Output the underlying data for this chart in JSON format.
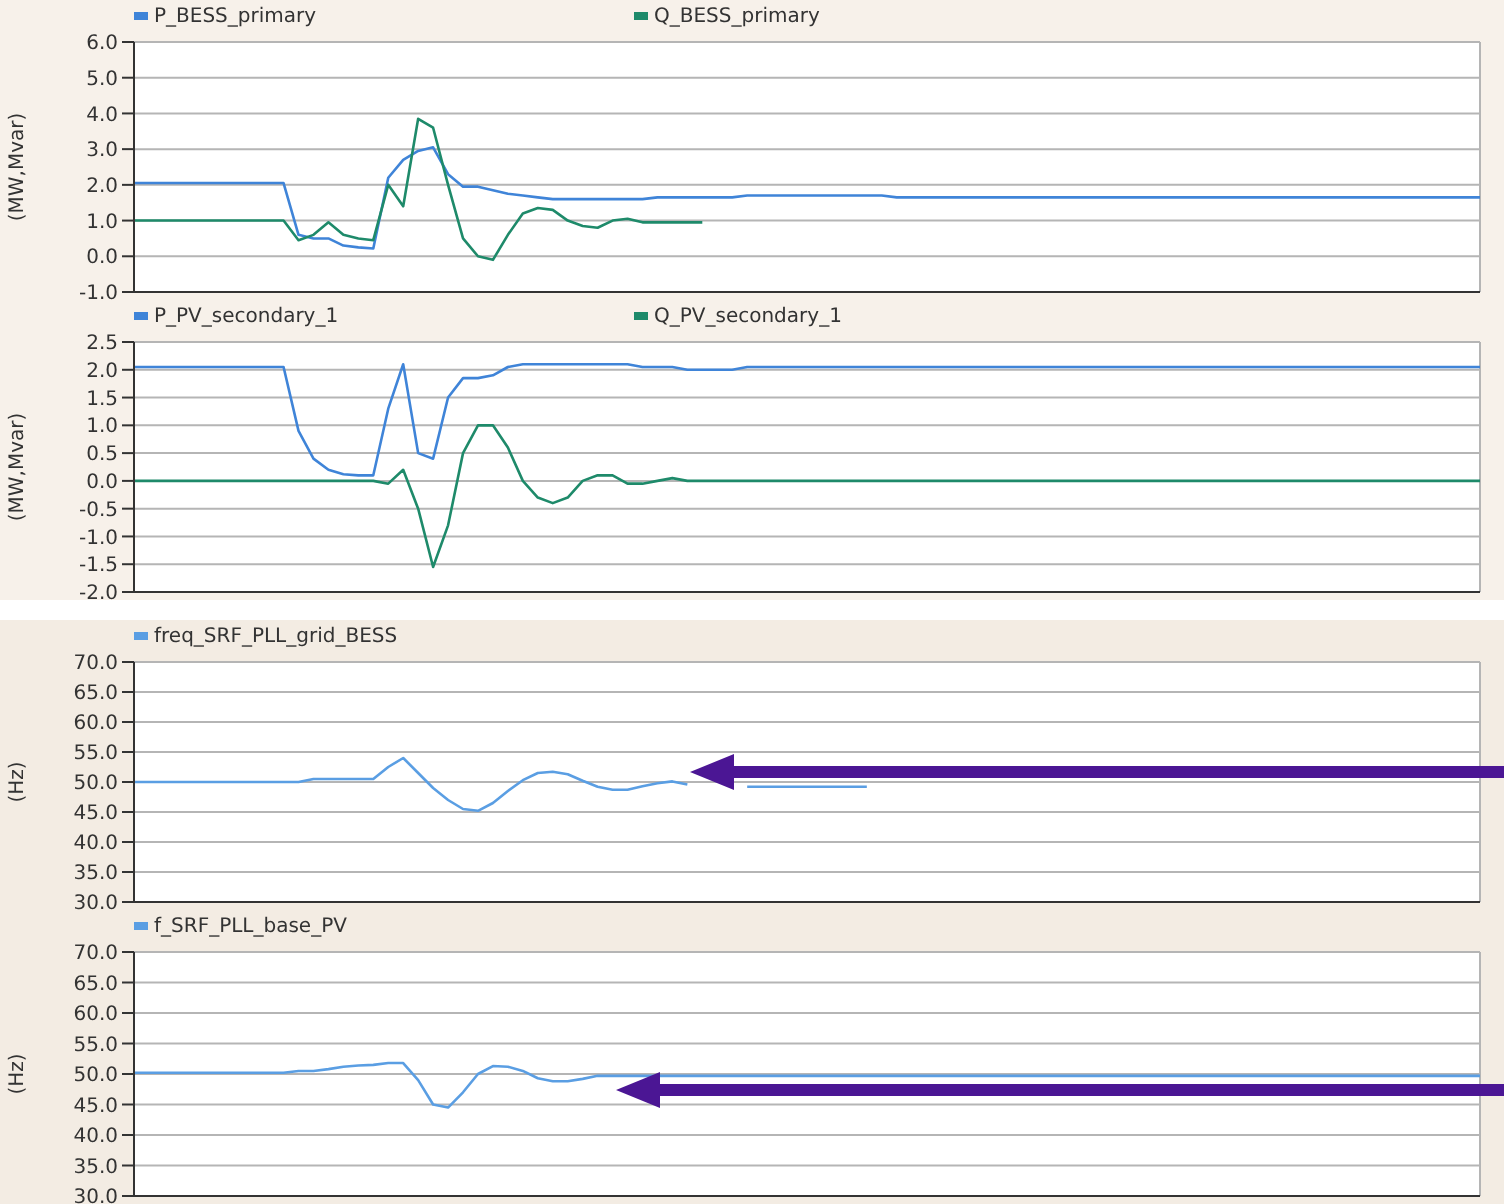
{
  "chart_data": [
    {
      "type": "line",
      "ylabel": "(MW,Mvar)",
      "legend": "top left",
      "grid": true,
      "tick_labels": "y",
      "ylim": [
        -1,
        6
      ],
      "yticks": [
        {
          "value": -1,
          "label": "-1.0"
        },
        {
          "value": 0,
          "label": "0.0"
        },
        {
          "value": 1,
          "label": "1.0"
        },
        {
          "value": 2,
          "label": "2.0"
        },
        {
          "value": 3,
          "label": "3.0"
        },
        {
          "value": 4,
          "label": "4.0"
        },
        {
          "value": 5,
          "label": "5.0"
        },
        {
          "value": 6,
          "label": "6.0"
        }
      ],
      "categories": [
        null,
        null,
        null,
        null,
        null,
        null,
        null,
        null,
        null,
        null,
        null,
        null,
        null,
        null,
        null,
        null,
        null,
        null,
        null,
        null,
        null,
        null,
        null,
        null,
        null,
        null,
        null,
        null,
        null,
        null,
        null,
        null,
        null,
        null,
        null,
        null,
        null,
        null,
        null,
        null,
        null,
        null,
        null,
        null,
        null,
        null,
        null,
        null,
        null,
        null,
        null,
        null,
        null,
        null,
        null,
        null,
        null,
        null,
        null,
        null,
        null,
        null,
        null,
        null,
        null,
        null,
        null,
        null,
        null,
        null,
        null,
        null,
        null,
        null,
        null,
        null,
        null,
        null,
        null,
        null,
        null,
        null,
        null,
        null,
        null,
        null,
        null,
        null,
        null,
        null,
        null
      ],
      "series": [
        {
          "name": "P_BESS_primary",
          "color": "#3f84d8",
          "values": [
            2.05,
            2.05,
            2.05,
            2.05,
            2.05,
            2.05,
            2.05,
            2.05,
            2.05,
            2.05,
            2.05,
            0.6,
            0.5,
            0.5,
            0.3,
            0.25,
            0.22,
            2.2,
            2.7,
            2.95,
            3.05,
            2.3,
            1.95,
            1.95,
            1.85,
            1.75,
            1.7,
            1.65,
            1.6,
            1.6,
            1.6,
            1.6,
            1.6,
            1.6,
            1.6,
            1.65,
            1.65,
            1.65,
            1.65,
            1.65,
            1.65,
            1.7,
            1.7,
            1.7,
            1.7,
            1.7,
            1.7,
            1.7,
            1.7,
            1.7,
            1.7,
            1.65,
            1.65,
            1.65,
            1.65,
            1.65,
            1.65,
            1.65,
            1.65,
            1.65,
            1.65,
            1.65,
            1.65,
            1.65,
            1.65,
            1.65,
            1.65,
            1.65,
            1.65,
            1.65,
            1.65,
            1.65,
            1.65,
            1.65,
            1.65,
            1.65,
            1.65,
            1.65,
            1.65,
            1.65,
            1.65,
            1.65,
            1.65,
            1.65,
            1.65,
            1.65,
            1.65,
            1.65,
            1.65,
            1.65,
            1.65
          ]
        },
        {
          "name": "Q_BESS_primary",
          "color": "#1e8a6a",
          "values": [
            1.0,
            1.0,
            1.0,
            1.0,
            1.0,
            1.0,
            1.0,
            1.0,
            1.0,
            1.0,
            1.0,
            0.45,
            0.6,
            0.95,
            0.6,
            0.5,
            0.45,
            2.0,
            1.4,
            3.85,
            3.6,
            2.0,
            0.5,
            0.0,
            -0.1,
            0.6,
            1.2,
            1.35,
            1.3,
            1.0,
            0.85,
            0.8,
            1.0,
            1.05,
            0.95,
            0.95,
            0.95,
            0.95,
            0.95,
            null,
            null,
            null,
            null,
            null,
            null,
            null,
            null,
            null,
            null,
            null,
            null,
            null,
            null,
            null,
            null,
            null,
            null,
            null,
            null,
            null,
            null,
            null,
            null,
            null,
            null,
            null,
            null,
            null,
            null,
            null,
            null,
            null,
            null,
            null,
            null,
            null,
            null,
            null,
            null,
            null,
            null,
            null,
            null,
            null,
            null,
            null,
            null,
            null,
            null,
            null,
            null
          ]
        }
      ]
    },
    {
      "type": "line",
      "ylabel": "(MW,Mvar)",
      "legend": "top left",
      "grid": true,
      "tick_labels": "y",
      "ylim": [
        -2,
        2.5
      ],
      "yticks": [
        {
          "value": -2,
          "label": "-2.0"
        },
        {
          "value": -1.5,
          "label": "-1.5"
        },
        {
          "value": -1,
          "label": "-1.0"
        },
        {
          "value": -0.5,
          "label": "-0.5"
        },
        {
          "value": 0,
          "label": "0.0"
        },
        {
          "value": 0.5,
          "label": "0.5"
        },
        {
          "value": 1,
          "label": "1.0"
        },
        {
          "value": 1.5,
          "label": "1.5"
        },
        {
          "value": 2,
          "label": "2.0"
        },
        {
          "value": 2.5,
          "label": "2.5"
        }
      ],
      "categories": [
        null,
        null,
        null,
        null,
        null,
        null,
        null,
        null,
        null,
        null,
        null,
        null,
        null,
        null,
        null,
        null,
        null,
        null,
        null,
        null,
        null,
        null,
        null,
        null,
        null,
        null,
        null,
        null,
        null,
        null,
        null,
        null,
        null,
        null,
        null,
        null,
        null,
        null,
        null,
        null,
        null,
        null,
        null,
        null,
        null,
        null,
        null,
        null,
        null,
        null,
        null,
        null,
        null,
        null,
        null,
        null,
        null,
        null,
        null,
        null,
        null,
        null,
        null,
        null,
        null,
        null,
        null,
        null,
        null,
        null,
        null,
        null,
        null,
        null,
        null,
        null,
        null,
        null,
        null,
        null,
        null,
        null,
        null,
        null,
        null,
        null,
        null,
        null,
        null,
        null,
        null
      ],
      "series": [
        {
          "name": "P_PV_secondary_1",
          "color": "#3f84d8",
          "values": [
            2.05,
            2.05,
            2.05,
            2.05,
            2.05,
            2.05,
            2.05,
            2.05,
            2.05,
            2.05,
            2.05,
            0.9,
            0.4,
            0.2,
            0.12,
            0.1,
            0.1,
            1.3,
            2.1,
            0.5,
            0.4,
            1.5,
            1.85,
            1.85,
            1.9,
            2.05,
            2.1,
            2.1,
            2.1,
            2.1,
            2.1,
            2.1,
            2.1,
            2.1,
            2.05,
            2.05,
            2.05,
            2.0,
            2.0,
            2.0,
            2.0,
            2.05,
            2.05,
            2.05,
            2.05,
            2.05,
            2.05,
            2.05,
            2.05,
            2.05,
            2.05,
            2.05,
            2.05,
            2.05,
            2.05,
            2.05,
            2.05,
            2.05,
            2.05,
            2.05,
            2.05,
            2.05,
            2.05,
            2.05,
            2.05,
            2.05,
            2.05,
            2.05,
            2.05,
            2.05,
            2.05,
            2.05,
            2.05,
            2.05,
            2.05,
            2.05,
            2.05,
            2.05,
            2.05,
            2.05,
            2.05,
            2.05,
            2.05,
            2.05,
            2.05,
            2.05,
            2.05,
            2.05,
            2.05,
            2.05,
            2.05
          ]
        },
        {
          "name": "Q_PV_secondary_1",
          "color": "#1e8a6a",
          "values": [
            0.0,
            0.0,
            0.0,
            0.0,
            0.0,
            0.0,
            0.0,
            0.0,
            0.0,
            0.0,
            0.0,
            0.0,
            0.0,
            0.0,
            0.0,
            0.0,
            0.0,
            -0.05,
            0.2,
            -0.5,
            -1.55,
            -0.8,
            0.5,
            1.0,
            1.0,
            0.6,
            0.0,
            -0.3,
            -0.4,
            -0.3,
            0.0,
            0.1,
            0.1,
            -0.05,
            -0.05,
            0.0,
            0.05,
            0.0,
            0.0,
            0.0,
            0.0,
            0.0,
            0.0,
            0.0,
            0.0,
            0.0,
            0.0,
            0.0,
            0.0,
            0.0,
            0.0,
            0.0,
            0.0,
            0.0,
            0.0,
            0.0,
            0.0,
            0.0,
            0.0,
            0.0,
            0.0,
            0.0,
            0.0,
            0.0,
            0.0,
            0.0,
            0.0,
            0.0,
            0.0,
            0.0,
            0.0,
            0.0,
            0.0,
            0.0,
            0.0,
            0.0,
            0.0,
            0.0,
            0.0,
            0.0,
            0.0,
            0.0,
            0.0,
            0.0,
            0.0,
            0.0,
            0.0,
            0.0,
            0.0,
            0.0,
            0.0
          ]
        }
      ]
    },
    {
      "type": "line",
      "ylabel": "(Hz)",
      "legend": "top left",
      "grid": true,
      "tick_labels": "y",
      "ylim": [
        30,
        70
      ],
      "yticks": [
        {
          "value": 30,
          "label": "30.0"
        },
        {
          "value": 35,
          "label": "35.0"
        },
        {
          "value": 40,
          "label": "40.0"
        },
        {
          "value": 45,
          "label": "45.0"
        },
        {
          "value": 50,
          "label": "50.0"
        },
        {
          "value": 55,
          "label": "55.0"
        },
        {
          "value": 60,
          "label": "60.0"
        },
        {
          "value": 65,
          "label": "65.0"
        },
        {
          "value": 70,
          "label": "70.0"
        }
      ],
      "categories": [
        null,
        null,
        null,
        null,
        null,
        null,
        null,
        null,
        null,
        null,
        null,
        null,
        null,
        null,
        null,
        null,
        null,
        null,
        null,
        null,
        null,
        null,
        null,
        null,
        null,
        null,
        null,
        null,
        null,
        null,
        null,
        null,
        null,
        null,
        null,
        null,
        null,
        null,
        null,
        null,
        null,
        null,
        null,
        null,
        null,
        null,
        null,
        null,
        null,
        null,
        null,
        null,
        null,
        null,
        null,
        null,
        null,
        null,
        null,
        null,
        null,
        null,
        null,
        null,
        null,
        null,
        null,
        null,
        null,
        null,
        null,
        null,
        null,
        null,
        null,
        null,
        null,
        null,
        null,
        null,
        null,
        null,
        null,
        null,
        null,
        null,
        null,
        null,
        null,
        null,
        null
      ],
      "series": [
        {
          "name": "freq_SRF_PLL_grid_BESS",
          "color": "#5a9ee3",
          "values": [
            50.0,
            50.0,
            50.0,
            50.0,
            50.0,
            50.0,
            50.0,
            50.0,
            50.0,
            50.0,
            50.0,
            50.0,
            50.5,
            50.5,
            50.5,
            50.5,
            50.5,
            52.5,
            54,
            51.5,
            49,
            47,
            45.5,
            45.2,
            46.5,
            48.5,
            50.3,
            51.5,
            51.7,
            51.3,
            50.2,
            49.2,
            48.7,
            48.7,
            49.3,
            49.8,
            50.1,
            49.6,
            null,
            null,
            null,
            49.2,
            49.2,
            49.2,
            49.2,
            49.2,
            49.2,
            49.2,
            49.2,
            49.2,
            null,
            null,
            null,
            null,
            null,
            null,
            null,
            null,
            null,
            null,
            null,
            null,
            null,
            null,
            null,
            null,
            null,
            null,
            null,
            null,
            null,
            null,
            null,
            null,
            null,
            null,
            null,
            null,
            null,
            null,
            null,
            null,
            null,
            null,
            null,
            null,
            null,
            null,
            null,
            null,
            null
          ]
        }
      ]
    },
    {
      "type": "line",
      "ylabel": "(Hz)",
      "legend": "top left",
      "grid": true,
      "tick_labels": "y",
      "ylim": [
        30,
        70
      ],
      "yticks": [
        {
          "value": 30,
          "label": "30.0"
        },
        {
          "value": 35,
          "label": "35.0"
        },
        {
          "value": 40,
          "label": "40.0"
        },
        {
          "value": 45,
          "label": "45.0"
        },
        {
          "value": 50,
          "label": "50.0"
        },
        {
          "value": 55,
          "label": "55.0"
        },
        {
          "value": 60,
          "label": "60.0"
        },
        {
          "value": 65,
          "label": "65.0"
        },
        {
          "value": 70,
          "label": "70.0"
        }
      ],
      "categories": [
        null,
        null,
        null,
        null,
        null,
        null,
        null,
        null,
        null,
        null,
        null,
        null,
        null,
        null,
        null,
        null,
        null,
        null,
        null,
        null,
        null,
        null,
        null,
        null,
        null,
        null,
        null,
        null,
        null,
        null,
        null,
        null,
        null,
        null,
        null,
        null,
        null,
        null,
        null,
        null,
        null,
        null,
        null,
        null,
        null,
        null,
        null,
        null,
        null,
        null,
        null,
        null,
        null,
        null,
        null,
        null,
        null,
        null,
        null,
        null,
        null,
        null,
        null,
        null,
        null,
        null,
        null,
        null,
        null,
        null,
        null,
        null,
        null,
        null,
        null,
        null,
        null,
        null,
        null,
        null,
        null,
        null,
        null,
        null,
        null,
        null,
        null,
        null,
        null,
        null,
        null
      ],
      "series": [
        {
          "name": "f_SRF_PLL_base_PV",
          "color": "#5a9ee3",
          "values": [
            50.2,
            50.2,
            50.2,
            50.2,
            50.2,
            50.2,
            50.2,
            50.2,
            50.2,
            50.2,
            50.2,
            50.5,
            50.5,
            50.8,
            51.2,
            51.4,
            51.5,
            51.8,
            51.8,
            49,
            45,
            44.5,
            47,
            50,
            51.3,
            51.2,
            50.5,
            49.3,
            48.8,
            48.8,
            49.2,
            49.7,
            49.7,
            49.7,
            49.7,
            49.7,
            49.7,
            49.7,
            49.7,
            49.7,
            49.7,
            49.7,
            49.7,
            49.7,
            49.7,
            49.7,
            49.7,
            49.7,
            49.7,
            49.7,
            49.7,
            49.7,
            49.7,
            49.7,
            49.7,
            49.7,
            49.7,
            49.7,
            49.7,
            49.7,
            49.7,
            49.7,
            49.7,
            49.7,
            49.7,
            49.7,
            49.7,
            49.7,
            49.7,
            49.7,
            49.7,
            49.7,
            49.7,
            49.7,
            49.7,
            49.7,
            49.7,
            49.7,
            49.7,
            49.7,
            49.7,
            49.7,
            49.7,
            49.7,
            49.7,
            49.7,
            49.7,
            49.7,
            49.7,
            49.7,
            49.7
          ]
        }
      ]
    }
  ]
}
